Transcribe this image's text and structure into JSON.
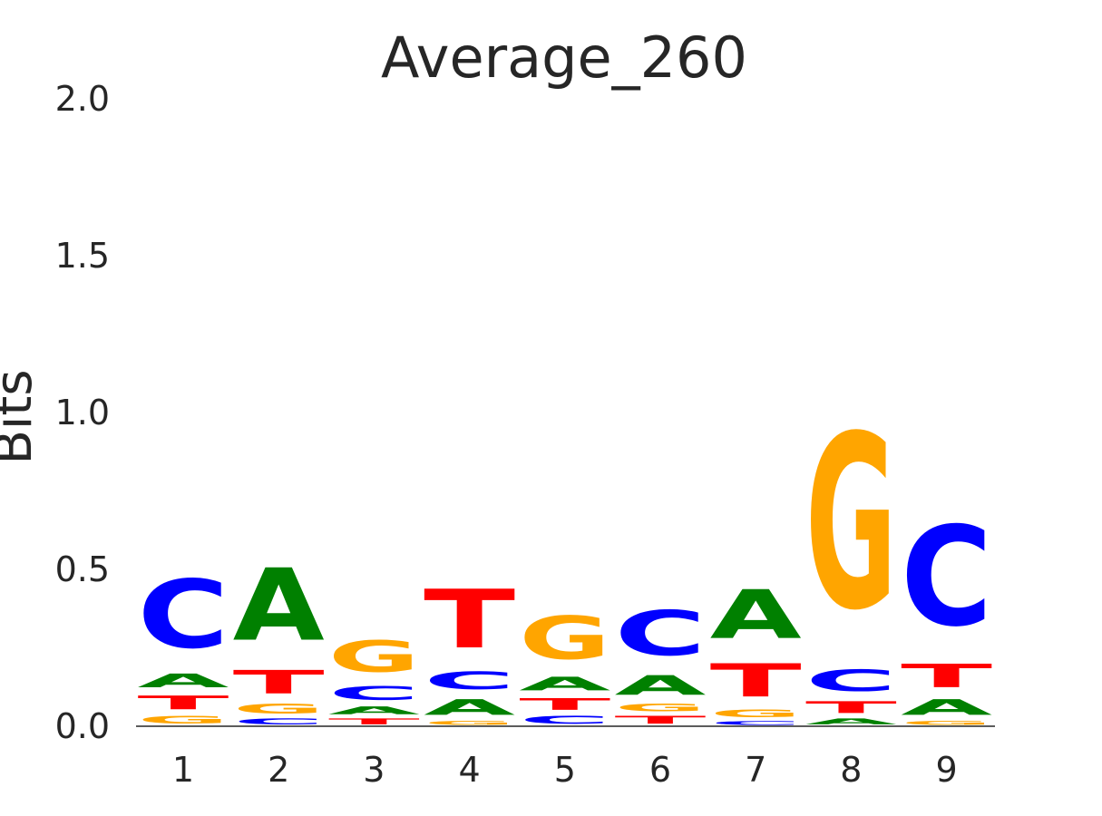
{
  "chart_data": {
    "type": "sequence-logo",
    "title": "Average_260",
    "ylabel": "Bits",
    "ylim": [
      0,
      2.0
    ],
    "yticks": [
      "0.0",
      "0.5",
      "1.0",
      "1.5",
      "2.0"
    ],
    "positions": [
      "1",
      "2",
      "3",
      "4",
      "5",
      "6",
      "7",
      "8",
      "9"
    ],
    "colors": {
      "A": "#008000",
      "C": "#0000ff",
      "G": "#ffa500",
      "T": "#ff0000"
    },
    "stacks": [
      [
        {
          "letter": "G",
          "bits": 0.04
        },
        {
          "letter": "T",
          "bits": 0.07
        },
        {
          "letter": "A",
          "bits": 0.07
        },
        {
          "letter": "C",
          "bits": 0.35
        }
      ],
      [
        {
          "letter": "C",
          "bits": 0.03
        },
        {
          "letter": "G",
          "bits": 0.05
        },
        {
          "letter": "T",
          "bits": 0.12
        },
        {
          "letter": "A",
          "bits": 0.37
        }
      ],
      [
        {
          "letter": "T",
          "bits": 0.03
        },
        {
          "letter": "A",
          "bits": 0.04
        },
        {
          "letter": "C",
          "bits": 0.07
        },
        {
          "letter": "G",
          "bits": 0.16
        }
      ],
      [
        {
          "letter": "G",
          "bits": 0.02
        },
        {
          "letter": "A",
          "bits": 0.08
        },
        {
          "letter": "C",
          "bits": 0.09
        },
        {
          "letter": "T",
          "bits": 0.3
        }
      ],
      [
        {
          "letter": "C",
          "bits": 0.04
        },
        {
          "letter": "T",
          "bits": 0.06
        },
        {
          "letter": "A",
          "bits": 0.07
        },
        {
          "letter": "G",
          "bits": 0.22
        }
      ],
      [
        {
          "letter": "T",
          "bits": 0.04
        },
        {
          "letter": "G",
          "bits": 0.04
        },
        {
          "letter": "A",
          "bits": 0.1
        },
        {
          "letter": "C",
          "bits": 0.23
        }
      ],
      [
        {
          "letter": "C",
          "bits": 0.02
        },
        {
          "letter": "G",
          "bits": 0.04
        },
        {
          "letter": "T",
          "bits": 0.17
        },
        {
          "letter": "A",
          "bits": 0.25
        }
      ],
      [
        {
          "letter": "A",
          "bits": 0.03
        },
        {
          "letter": "T",
          "bits": 0.06
        },
        {
          "letter": "C",
          "bits": 0.11
        },
        {
          "letter": "G",
          "bits": 0.89
        }
      ],
      [
        {
          "letter": "G",
          "bits": 0.02
        },
        {
          "letter": "A",
          "bits": 0.08
        },
        {
          "letter": "T",
          "bits": 0.12
        },
        {
          "letter": "C",
          "bits": 0.51
        }
      ]
    ]
  }
}
